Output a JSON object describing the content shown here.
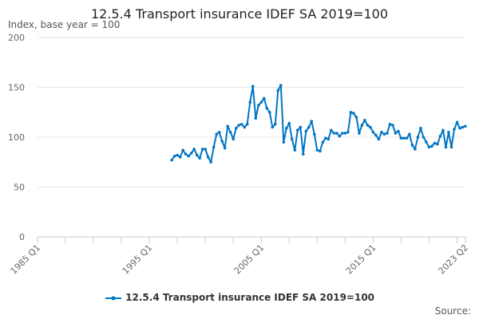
{
  "chart_data": {
    "type": "line",
    "title": "12.5.4 Transport insurance IDEF SA 2019=100",
    "ylabel": "Index, base year = 100",
    "xlabel": "",
    "ylim": [
      0,
      200
    ],
    "yticks": [
      0,
      50,
      100,
      150,
      200
    ],
    "xrange": [
      "1985 Q1",
      "2023 Q2"
    ],
    "xticks": [
      "1985 Q1",
      "1995 Q1",
      "2005 Q1",
      "2015 Q1",
      "2023 Q2"
    ],
    "grid": true,
    "legend_position": "bottom",
    "color": "#0075c4",
    "series": [
      {
        "name": "12.5.4 Transport insurance IDEF SA 2019=100",
        "x": [
          "1997 Q1",
          "1997 Q2",
          "1997 Q3",
          "1997 Q4",
          "1998 Q1",
          "1998 Q2",
          "1998 Q3",
          "1998 Q4",
          "1999 Q1",
          "1999 Q2",
          "1999 Q3",
          "1999 Q4",
          "2000 Q1",
          "2000 Q2",
          "2000 Q3",
          "2000 Q4",
          "2001 Q1",
          "2001 Q2",
          "2001 Q3",
          "2001 Q4",
          "2002 Q1",
          "2002 Q2",
          "2002 Q3",
          "2002 Q4",
          "2003 Q1",
          "2003 Q2",
          "2003 Q3",
          "2003 Q4",
          "2004 Q1",
          "2004 Q2",
          "2004 Q3",
          "2004 Q4",
          "2005 Q1",
          "2005 Q2",
          "2005 Q3",
          "2005 Q4",
          "2006 Q1",
          "2006 Q2",
          "2006 Q3",
          "2006 Q4",
          "2007 Q1",
          "2007 Q2",
          "2007 Q3",
          "2007 Q4",
          "2008 Q1",
          "2008 Q2",
          "2008 Q3",
          "2008 Q4",
          "2009 Q1",
          "2009 Q2",
          "2009 Q3",
          "2009 Q4",
          "2010 Q1",
          "2010 Q2",
          "2010 Q3",
          "2010 Q4",
          "2011 Q1",
          "2011 Q2",
          "2011 Q3",
          "2011 Q4",
          "2012 Q1",
          "2012 Q2",
          "2012 Q3",
          "2012 Q4",
          "2013 Q1",
          "2013 Q2",
          "2013 Q3",
          "2013 Q4",
          "2014 Q1",
          "2014 Q2",
          "2014 Q3",
          "2014 Q4",
          "2015 Q1",
          "2015 Q2",
          "2015 Q3",
          "2015 Q4",
          "2016 Q1",
          "2016 Q2",
          "2016 Q3",
          "2016 Q4",
          "2017 Q1",
          "2017 Q2",
          "2017 Q3",
          "2017 Q4",
          "2018 Q1",
          "2018 Q2",
          "2018 Q3",
          "2018 Q4",
          "2019 Q1",
          "2019 Q2",
          "2019 Q3",
          "2019 Q4",
          "2020 Q1",
          "2020 Q2",
          "2020 Q3",
          "2020 Q4",
          "2021 Q1",
          "2021 Q2",
          "2021 Q3",
          "2021 Q4",
          "2022 Q1",
          "2022 Q2",
          "2022 Q3",
          "2022 Q4",
          "2023 Q1",
          "2023 Q2"
        ],
        "values": [
          77,
          81,
          82,
          80,
          87,
          83,
          81,
          84,
          88,
          82,
          79,
          88,
          88,
          80,
          75,
          90,
          103,
          105,
          96,
          89,
          111,
          105,
          98,
          109,
          112,
          113,
          110,
          113,
          135,
          151,
          119,
          132,
          135,
          139,
          129,
          125,
          110,
          113,
          147,
          152,
          95,
          109,
          114,
          98,
          87,
          107,
          110,
          83,
          106,
          110,
          116,
          103,
          87,
          86,
          95,
          99,
          98,
          107,
          104,
          104,
          101,
          104,
          104,
          105,
          125,
          124,
          120,
          104,
          112,
          117,
          112,
          110,
          105,
          102,
          98,
          105,
          103,
          104,
          113,
          112,
          104,
          106,
          99,
          99,
          99,
          103,
          92,
          88,
          100,
          109,
          100,
          95,
          90,
          91,
          94,
          93,
          101,
          107,
          90,
          105,
          90,
          108,
          115,
          109,
          110,
          111
        ]
      }
    ]
  },
  "source_label": "Source:"
}
